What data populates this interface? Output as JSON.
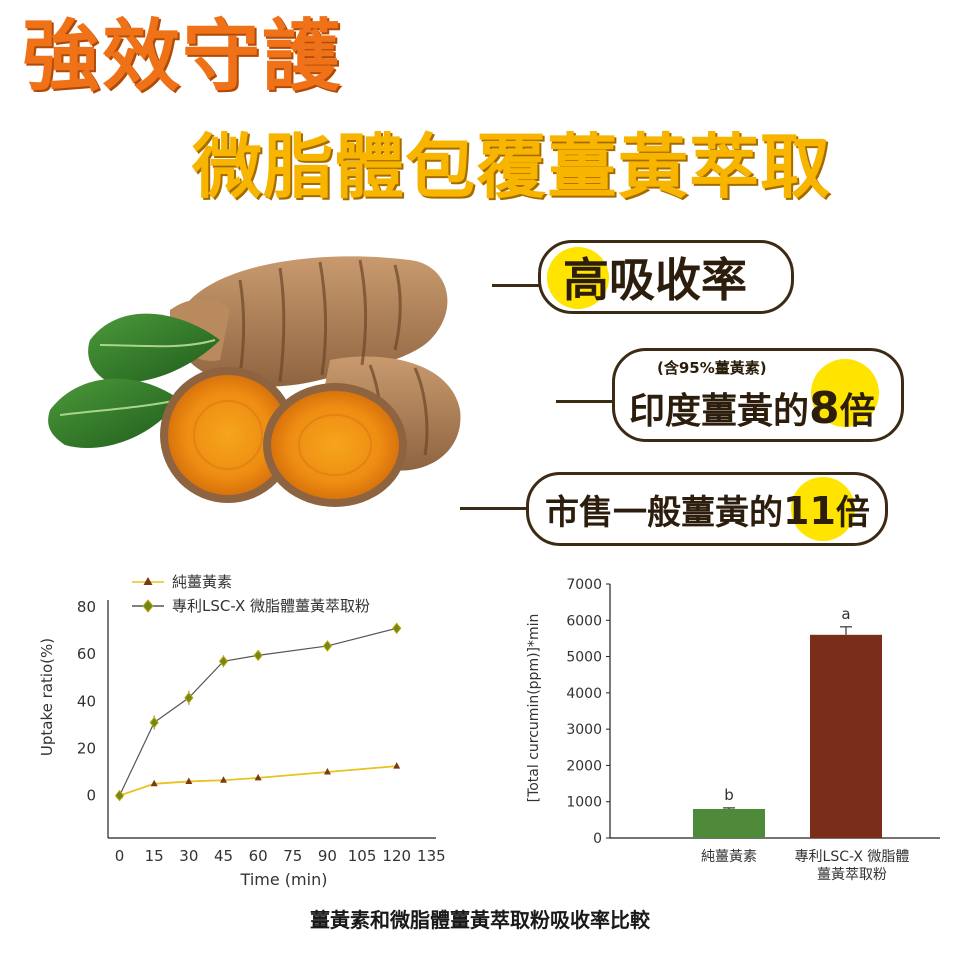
{
  "headline": {
    "line1": "強效守護",
    "line2": "微脂體包覆薑黃萃取"
  },
  "badges": [
    {
      "text": "高吸收率"
    },
    {
      "note": "(含95%薑黃素)",
      "prefix": "印度薑黃的",
      "highlight": "8",
      "suffix": "倍"
    },
    {
      "prefix": "市售一般薑黃的",
      "highlight": "11",
      "suffix": "倍"
    }
  ],
  "colors": {
    "headline1": "#f07218",
    "headline2": "#f7b500",
    "highlight": "#ffe400",
    "series_pure": "#e8c21e",
    "series_lsc": "#555555",
    "bar_pure": "#4f8a3a",
    "bar_lsc": "#7a2e1a"
  },
  "chart_data": [
    {
      "type": "line",
      "xlabel": "Time (min)",
      "ylabel": "Uptake ratio(%)",
      "x_ticks": [
        "0",
        "15",
        "30",
        "45",
        "60",
        "75",
        "90",
        "105",
        "120",
        "135"
      ],
      "y_ticks": [
        "0",
        "20",
        "40",
        "60",
        "80"
      ],
      "xlim": [
        -5,
        137
      ],
      "ylim": [
        -18,
        83
      ],
      "legend_position": "top-left",
      "series": [
        {
          "name": "純薑黃素",
          "marker": "triangle",
          "x": [
            0,
            15,
            30,
            45,
            60,
            90,
            120
          ],
          "y": [
            0,
            5,
            6,
            6.5,
            7.5,
            10,
            12.5
          ]
        },
        {
          "name": "專利LSC-X 微脂體薑黃萃取粉",
          "marker": "diamond",
          "x": [
            0,
            15,
            30,
            45,
            60,
            90,
            120
          ],
          "y": [
            0,
            31,
            41.5,
            57,
            59.5,
            63.5,
            71
          ],
          "error": [
            0,
            3,
            3,
            2.5,
            1,
            2,
            1.5
          ]
        }
      ]
    },
    {
      "type": "bar",
      "ylabel": "[Total curcumin(ppm)]*min",
      "y_ticks": [
        "0",
        "1000",
        "2000",
        "3000",
        "4000",
        "5000",
        "6000",
        "7000"
      ],
      "ylim": [
        0,
        7000
      ],
      "categories": [
        [
          "純薑黃素"
        ],
        [
          "專利LSC-X 微脂體",
          "薑黃萃取粉"
        ]
      ],
      "values": [
        800,
        5600
      ],
      "error": [
        30,
        220
      ],
      "annotations": [
        "b",
        "a"
      ]
    }
  ],
  "caption": "薑黃素和微脂體薑黃萃取粉吸收率比較"
}
